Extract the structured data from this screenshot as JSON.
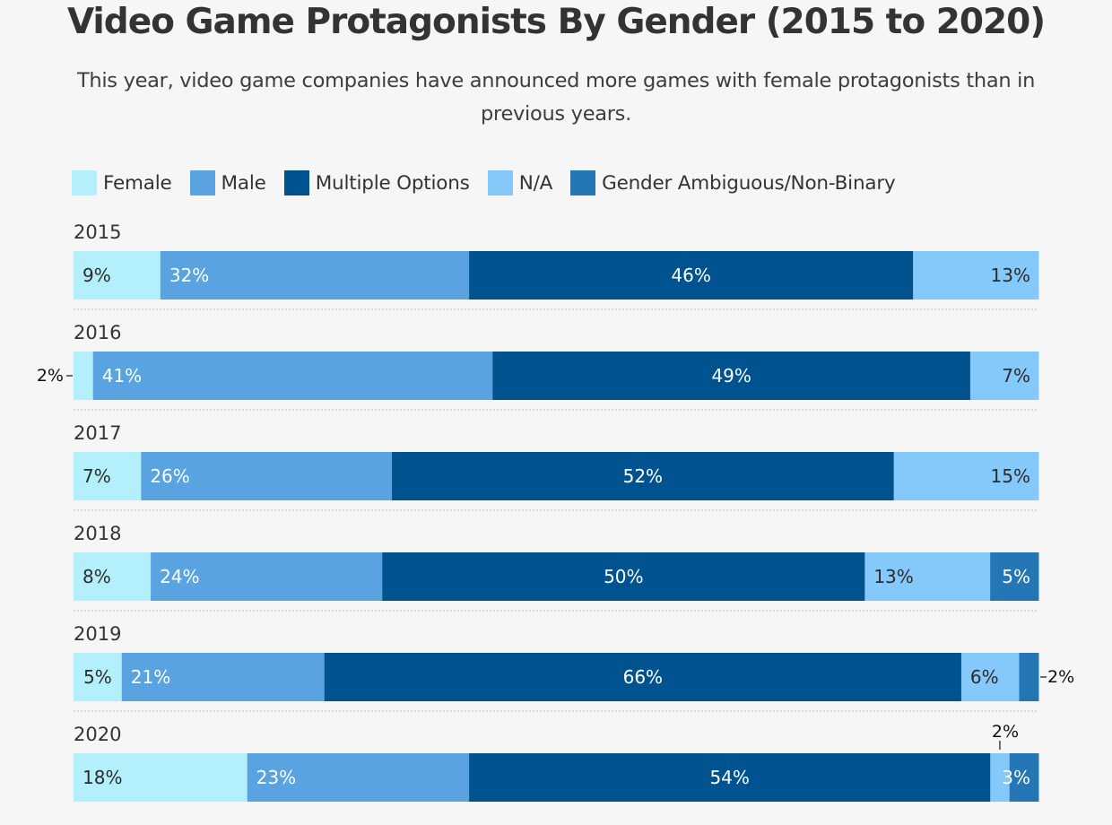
{
  "title": "Video Game Protagonists By Gender (2015 to 2020)",
  "subtitle": "This year, video game companies have announced more games with female protagonists than in previous years.",
  "colors": {
    "female": "#b3f0fb",
    "male": "#58a3e0",
    "multiple": "#00538f",
    "na": "#85c8fa",
    "ambiguous": "#2476b5",
    "background": "#f6f6f6",
    "divider": "#cfcfcf"
  },
  "chart_data": {
    "type": "bar",
    "orientation": "horizontal",
    "stacked": true,
    "normalized": true,
    "title": "Video Game Protagonists By Gender (2015 to 2020)",
    "legend_position": "top-left",
    "categories": [
      "2015",
      "2016",
      "2017",
      "2018",
      "2019",
      "2020"
    ],
    "series": [
      {
        "name": "Female",
        "key": "female",
        "values": [
          9,
          2,
          7,
          8,
          5,
          18
        ]
      },
      {
        "name": "Male",
        "key": "male",
        "values": [
          32,
          41,
          26,
          24,
          21,
          23
        ]
      },
      {
        "name": "Multiple Options",
        "key": "multiple",
        "values": [
          46,
          49,
          52,
          50,
          66,
          54
        ]
      },
      {
        "name": "N/A",
        "key": "na",
        "values": [
          13,
          7,
          15,
          13,
          6,
          2
        ]
      },
      {
        "name": "Gender Ambiguous/Non-Binary",
        "key": "ambiguous",
        "values": [
          0,
          0,
          0,
          5,
          2,
          3
        ]
      }
    ],
    "value_suffix": "%"
  }
}
